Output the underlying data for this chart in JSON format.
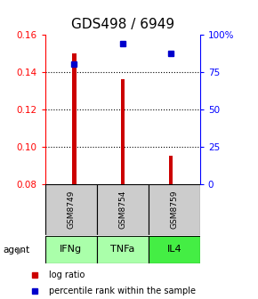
{
  "title": "GDS498 / 6949",
  "categories": [
    "GSM8749",
    "GSM8754",
    "GSM8759"
  ],
  "agents": [
    "IFNg",
    "TNFa",
    "IL4"
  ],
  "log_ratio": [
    0.15,
    0.136,
    0.095
  ],
  "percentile_rank": [
    80,
    94,
    87
  ],
  "ylim_left": [
    0.08,
    0.16
  ],
  "ylim_right": [
    0,
    100
  ],
  "yticks_left": [
    0.08,
    0.1,
    0.12,
    0.14,
    0.16
  ],
  "yticks_right": [
    0,
    25,
    50,
    75,
    100
  ],
  "ytick_labels_right": [
    "0",
    "25",
    "50",
    "75",
    "100%"
  ],
  "bar_color": "#cc0000",
  "dot_color": "#0000cc",
  "bar_width": 0.08,
  "agent_colors": [
    "#aaffaa",
    "#aaffaa",
    "#44ee44"
  ],
  "sample_bg_color": "#cccccc",
  "title_fontsize": 11,
  "legend_bar_label": "log ratio",
  "legend_dot_label": "percentile rank within the sample"
}
